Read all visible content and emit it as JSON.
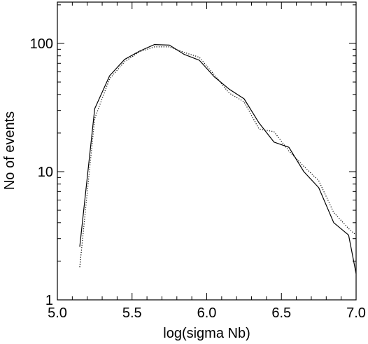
{
  "chart_data": {
    "type": "line",
    "title": "",
    "xlabel": "log(sigma Nb)",
    "ylabel": "No of events",
    "xlim": [
      5.0,
      7.0
    ],
    "ylim": [
      1,
      210
    ],
    "yscale": "log",
    "grid": false,
    "legend": "none",
    "x_ticks": [
      {
        "value": 5.0,
        "label": "5.0"
      },
      {
        "value": 5.5,
        "label": "5.5"
      },
      {
        "value": 6.0,
        "label": "6.0"
      },
      {
        "value": 6.5,
        "label": "6.5"
      },
      {
        "value": 7.0,
        "label": "7.0"
      }
    ],
    "y_ticks": [
      {
        "value": 1,
        "label": "1"
      },
      {
        "value": 10,
        "label": "10"
      },
      {
        "value": 100,
        "label": "100"
      }
    ],
    "series": [
      {
        "style": "solid",
        "color": "#000000",
        "x": [
          5.15,
          5.25,
          5.35,
          5.45,
          5.55,
          5.65,
          5.75,
          5.85,
          5.95,
          6.05,
          6.15,
          6.25,
          6.35,
          6.45,
          6.55,
          6.65,
          6.75,
          6.85,
          6.95,
          7.0
        ],
        "values": [
          2.6,
          31,
          56,
          75,
          87,
          98,
          97,
          82,
          74,
          55,
          44,
          37,
          24,
          17,
          15.5,
          10,
          7.5,
          4.0,
          3.2,
          1.6
        ]
      },
      {
        "style": "dotted",
        "color": "#000000",
        "x": [
          5.15,
          5.25,
          5.35,
          5.45,
          5.55,
          5.65,
          5.75,
          5.85,
          5.95,
          6.05,
          6.15,
          6.25,
          6.35,
          6.45,
          6.55,
          6.65,
          6.75,
          6.85,
          6.95,
          7.0
        ],
        "values": [
          1.8,
          26,
          53,
          72,
          86,
          94,
          94,
          85,
          78,
          57,
          41,
          35,
          21.5,
          20.5,
          14.5,
          11,
          8.5,
          4.8,
          3.6,
          3.2
        ]
      }
    ]
  }
}
